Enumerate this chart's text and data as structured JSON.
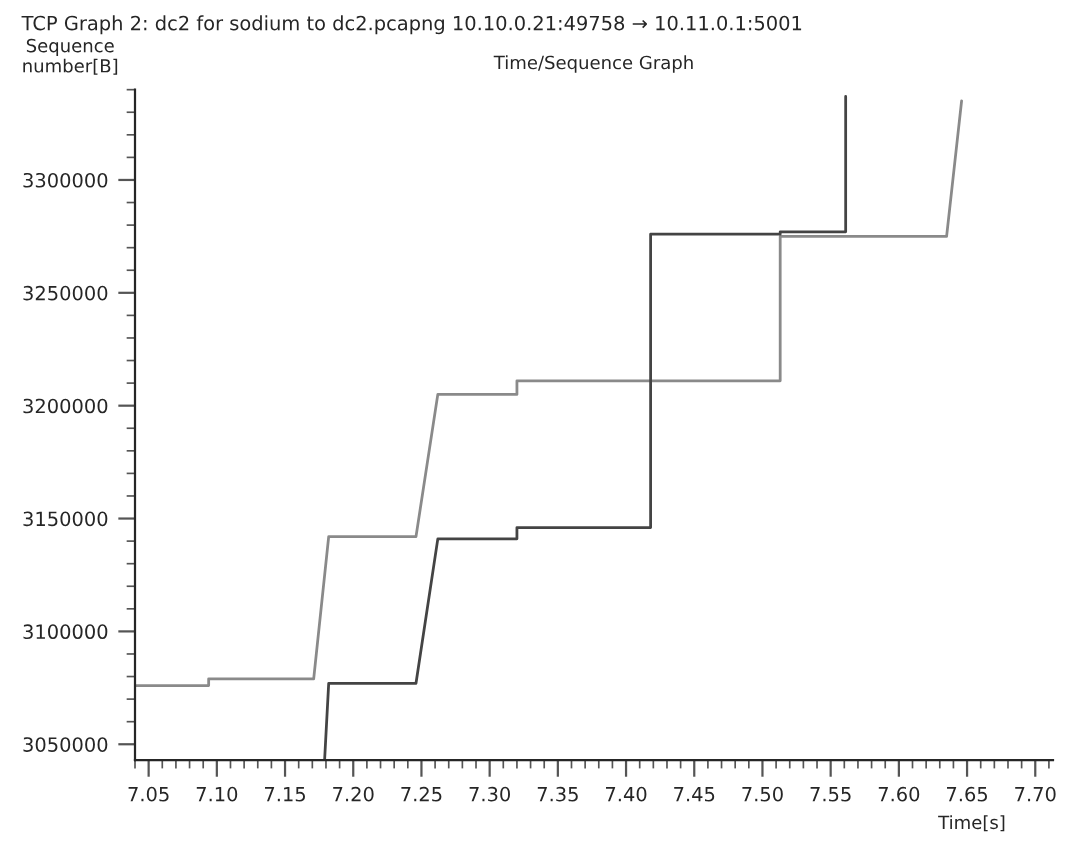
{
  "chart_data": {
    "type": "line",
    "title": "TCP Graph 2: dc2 for sodium to dc2.pcapng 10.10.0.21:49758 → 10.11.0.1:5001",
    "subtitle": "Time/Sequence Graph",
    "xlabel": "Time[s]",
    "ylabel": "Sequence\nnumber[B]",
    "series": [
      {
        "color": "#8a8a8a",
        "x": [
          7.04,
          7.094,
          7.094,
          7.171,
          7.182,
          7.246,
          7.262,
          7.32,
          7.32,
          7.418,
          7.418,
          7.418,
          7.513,
          7.513,
          7.635,
          7.646
        ],
        "values": [
          3076000,
          3076000,
          3079000,
          3079000,
          3142000,
          3142000,
          3205000,
          3205000,
          3211000,
          3211000,
          3211000,
          3211000,
          3211000,
          3275000,
          3275000,
          3335000
        ]
      },
      {
        "color": "#444444",
        "x": [
          7.179,
          7.182,
          7.246,
          7.262,
          7.32,
          7.32,
          7.418,
          7.418,
          7.513,
          7.513,
          7.561,
          7.561
        ],
        "values": [
          3043000,
          3077000,
          3077000,
          3141000,
          3141000,
          3146000,
          3146000,
          3276000,
          3276000,
          3277000,
          3277000,
          3337000
        ]
      }
    ],
    "xlim": [
      7.04,
      7.713
    ],
    "xticks": [
      {
        "value": 7.05,
        "label": "7.05"
      },
      {
        "value": 7.1,
        "label": "7.10"
      },
      {
        "value": 7.15,
        "label": "7.15"
      },
      {
        "value": 7.2,
        "label": "7.20"
      },
      {
        "value": 7.25,
        "label": "7.25"
      },
      {
        "value": 7.3,
        "label": "7.30"
      },
      {
        "value": 7.35,
        "label": "7.35"
      },
      {
        "value": 7.4,
        "label": "7.40"
      },
      {
        "value": 7.45,
        "label": "7.45"
      },
      {
        "value": 7.5,
        "label": "7.50"
      },
      {
        "value": 7.55,
        "label": "7.55"
      },
      {
        "value": 7.6,
        "label": "7.60"
      },
      {
        "value": 7.65,
        "label": "7.65"
      },
      {
        "value": 7.7,
        "label": "7.70"
      }
    ],
    "ylim": [
      3043000,
      3340000
    ],
    "yticks": [
      3050000,
      3100000,
      3150000,
      3200000,
      3250000,
      3300000
    ],
    "grid": false,
    "legend": false
  }
}
